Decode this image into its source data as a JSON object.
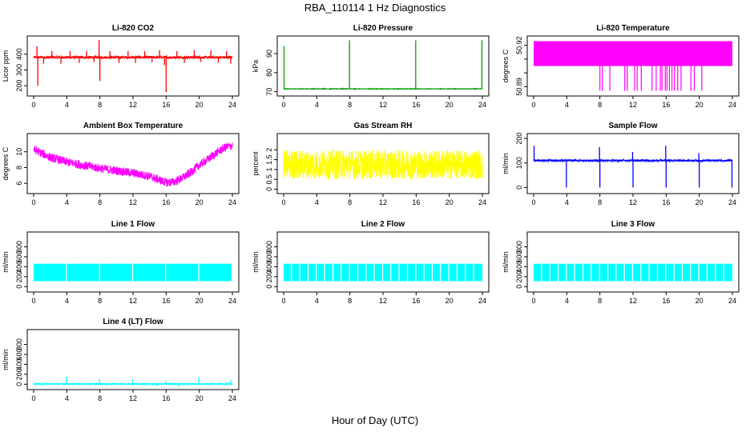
{
  "figure": {
    "title": "RBA_110114  1 Hz Diagnostics",
    "xlabel": "Hour of Day (UTC)"
  },
  "chart_data": [
    {
      "type": "line",
      "title": "Li-820 CO2",
      "ylabel": "Licor ppm",
      "color": "#ff0000",
      "x_ticks": [
        0,
        4,
        8,
        12,
        16,
        20,
        24
      ],
      "y_ticks": [
        200,
        300,
        400
      ],
      "xlim": [
        0,
        24
      ],
      "ylim": [
        150,
        500
      ],
      "series": [
        {
          "baseline": 380,
          "noise": 8,
          "spikes": [
            [
              0.4,
              450
            ],
            [
              0.5,
              200
            ],
            [
              1.2,
              340
            ],
            [
              2.2,
              420
            ],
            [
              3.3,
              340
            ],
            [
              4.4,
              420
            ],
            [
              5.5,
              345
            ],
            [
              6.4,
              420
            ],
            [
              7.3,
              350
            ],
            [
              7.9,
              490
            ],
            [
              8.0,
              230
            ],
            [
              9.2,
              420
            ],
            [
              10.3,
              345
            ],
            [
              11.4,
              420
            ],
            [
              12.3,
              345
            ],
            [
              13.4,
              420
            ],
            [
              14.3,
              350
            ],
            [
              15.2,
              425
            ],
            [
              15.8,
              330
            ],
            [
              16.0,
              160
            ],
            [
              17.3,
              420
            ],
            [
              18.2,
              345
            ],
            [
              19.4,
              425
            ],
            [
              20.2,
              350
            ],
            [
              21.4,
              425
            ],
            [
              22.3,
              345
            ],
            [
              23.3,
              420
            ],
            [
              23.8,
              340
            ]
          ]
        }
      ]
    },
    {
      "type": "line",
      "title": "Li-820 Pressure",
      "ylabel": "kPa",
      "color": "#00a000",
      "x_ticks": [
        0,
        4,
        8,
        12,
        16,
        20,
        24
      ],
      "y_ticks": [
        70,
        80,
        90
      ],
      "xlim": [
        0,
        24
      ],
      "ylim": [
        69,
        98
      ],
      "series": [
        {
          "baseline": 71.5,
          "noise": 0.15,
          "spikes": [
            [
              0.05,
              94
            ],
            [
              7.95,
              97
            ],
            [
              15.95,
              97
            ],
            [
              23.95,
              97
            ]
          ]
        }
      ]
    },
    {
      "type": "line",
      "title": "Li-820 Temperature",
      "ylabel": "degrees C",
      "color": "#ff00ff",
      "x_ticks": [
        0,
        4,
        8,
        12,
        16,
        20,
        24
      ],
      "y_ticks": [
        50.89,
        50.9,
        50.91,
        50.92
      ],
      "y_tick_labels": [
        "50.89",
        "",
        "",
        "50.92"
      ],
      "xlim": [
        0,
        24
      ],
      "ylim": [
        50.885,
        50.925
      ],
      "series": [
        {
          "band_low": 50.905,
          "band_high": 50.923,
          "drops": [
            8.0,
            8.3,
            9.2,
            11.0,
            11.3,
            12.2,
            12.5,
            13.0,
            14.3,
            14.8,
            15.3,
            15.5,
            15.9,
            16.1,
            16.4,
            16.7,
            17.0,
            17.4,
            17.8,
            19.0,
            19.4,
            20.3
          ],
          "drop_to": 50.887
        }
      ]
    },
    {
      "type": "line",
      "title": "Ambient Box Temperature",
      "ylabel": "degrees C",
      "color": "#ff00ff",
      "x_ticks": [
        0,
        4,
        8,
        12,
        16,
        20,
        24
      ],
      "y_ticks": [
        6,
        8,
        10
      ],
      "xlim": [
        0,
        24
      ],
      "ylim": [
        5,
        12
      ],
      "series": [
        {
          "x": [
            0,
            2,
            4,
            6,
            8,
            10,
            12,
            14,
            16,
            17,
            18,
            19,
            20,
            21,
            22,
            23,
            24
          ],
          "y": [
            10.3,
            9.3,
            8.7,
            8.3,
            7.9,
            7.6,
            7.3,
            6.9,
            6.1,
            6.2,
            6.7,
            7.4,
            8.3,
            9.0,
            9.8,
            10.5,
            10.8
          ],
          "noise": 0.55
        }
      ]
    },
    {
      "type": "line",
      "title": "Gas Stream RH",
      "ylabel": "percent",
      "color": "#ffff00",
      "x_ticks": [
        0,
        4,
        8,
        12,
        16,
        20,
        24
      ],
      "y_ticks": [
        0.0,
        0.5,
        1.0,
        1.5,
        2.0
      ],
      "xlim": [
        0,
        24
      ],
      "ylim": [
        -0.1,
        2.7
      ],
      "series": [
        {
          "baseline": 1.25,
          "noise": 0.75
        }
      ]
    },
    {
      "type": "line",
      "title": "Sample Flow",
      "ylabel": "ml/min",
      "color": "#0000ff",
      "x_ticks": [
        0,
        4,
        8,
        12,
        16,
        20,
        24
      ],
      "y_ticks": [
        0,
        100,
        200
      ],
      "xlim": [
        0,
        24
      ],
      "ylim": [
        -15,
        210
      ],
      "series": [
        {
          "baseline": 110,
          "noise": 4,
          "spikes": [
            [
              0.05,
              170
            ],
            [
              3.95,
              0
            ],
            [
              7.95,
              165
            ],
            [
              8.0,
              0
            ],
            [
              11.95,
              145
            ],
            [
              12.0,
              0
            ],
            [
              15.95,
              170
            ],
            [
              16.0,
              0
            ],
            [
              19.95,
              140
            ],
            [
              20.0,
              0
            ],
            [
              23.95,
              0
            ]
          ]
        }
      ]
    },
    {
      "type": "line",
      "title": "Line 1 Flow",
      "ylabel": "ml/min",
      "color": "#00ffff",
      "x_ticks": [
        0,
        4,
        8,
        12,
        16,
        20,
        24
      ],
      "y_ticks": [
        0,
        200,
        400,
        600,
        800
      ],
      "xlim": [
        0,
        24
      ],
      "ylim": [
        -60,
        1050
      ],
      "series": [
        {
          "band_low": 110,
          "band_high": 460,
          "gaps": [
            3.95,
            7.95,
            11.95,
            15.95,
            19.95,
            23.95
          ]
        }
      ]
    },
    {
      "type": "line",
      "title": "Line 2 Flow",
      "ylabel": "ml/min",
      "color": "#00ffff",
      "x_ticks": [
        0,
        4,
        8,
        12,
        16,
        20,
        24
      ],
      "y_ticks": [
        0,
        200,
        400,
        600,
        800
      ],
      "xlim": [
        0,
        24
      ],
      "ylim": [
        -60,
        1050
      ],
      "series": [
        {
          "band_low": 110,
          "band_high": 460,
          "gaps": [
            0.95,
            1.95,
            2.95,
            3.95,
            4.95,
            5.95,
            6.95,
            7.95,
            8.95,
            9.95,
            10.95,
            11.95,
            12.95,
            13.95,
            14.95,
            15.95,
            16.95,
            17.95,
            18.95,
            19.95,
            20.95,
            21.95,
            22.95
          ]
        }
      ]
    },
    {
      "type": "line",
      "title": "Line 3 Flow",
      "ylabel": "ml/min",
      "color": "#00ffff",
      "x_ticks": [
        0,
        4,
        8,
        12,
        16,
        20,
        24
      ],
      "y_ticks": [
        0,
        200,
        400,
        600,
        800
      ],
      "xlim": [
        0,
        24
      ],
      "ylim": [
        -60,
        1050
      ],
      "series": [
        {
          "band_low": 110,
          "band_high": 460,
          "gaps": [
            0.95,
            1.95,
            2.95,
            3.95,
            4.95,
            5.95,
            6.95,
            7.95,
            8.95,
            9.95,
            10.95,
            11.95,
            12.95,
            13.95,
            14.95,
            15.95,
            16.95,
            17.95,
            18.95,
            19.95,
            20.95,
            21.95,
            22.95
          ]
        }
      ]
    },
    {
      "type": "line",
      "title": "Line 4 (LT) Flow",
      "ylabel": "ml/min",
      "color": "#00ffff",
      "x_ticks": [
        0,
        4,
        8,
        12,
        16,
        20,
        24
      ],
      "y_ticks": [
        0,
        200,
        400,
        600,
        800
      ],
      "xlim": [
        0,
        24
      ],
      "ylim": [
        -60,
        1050
      ],
      "series": [
        {
          "baseline": 5,
          "noise": 10,
          "spikes": [
            [
              3.95,
              150
            ],
            [
              7.95,
              100
            ],
            [
              11.95,
              95
            ],
            [
              14.9,
              -40
            ],
            [
              15.95,
              70
            ],
            [
              17.5,
              -60
            ],
            [
              19.95,
              140
            ],
            [
              23.8,
              80
            ]
          ]
        }
      ]
    }
  ]
}
